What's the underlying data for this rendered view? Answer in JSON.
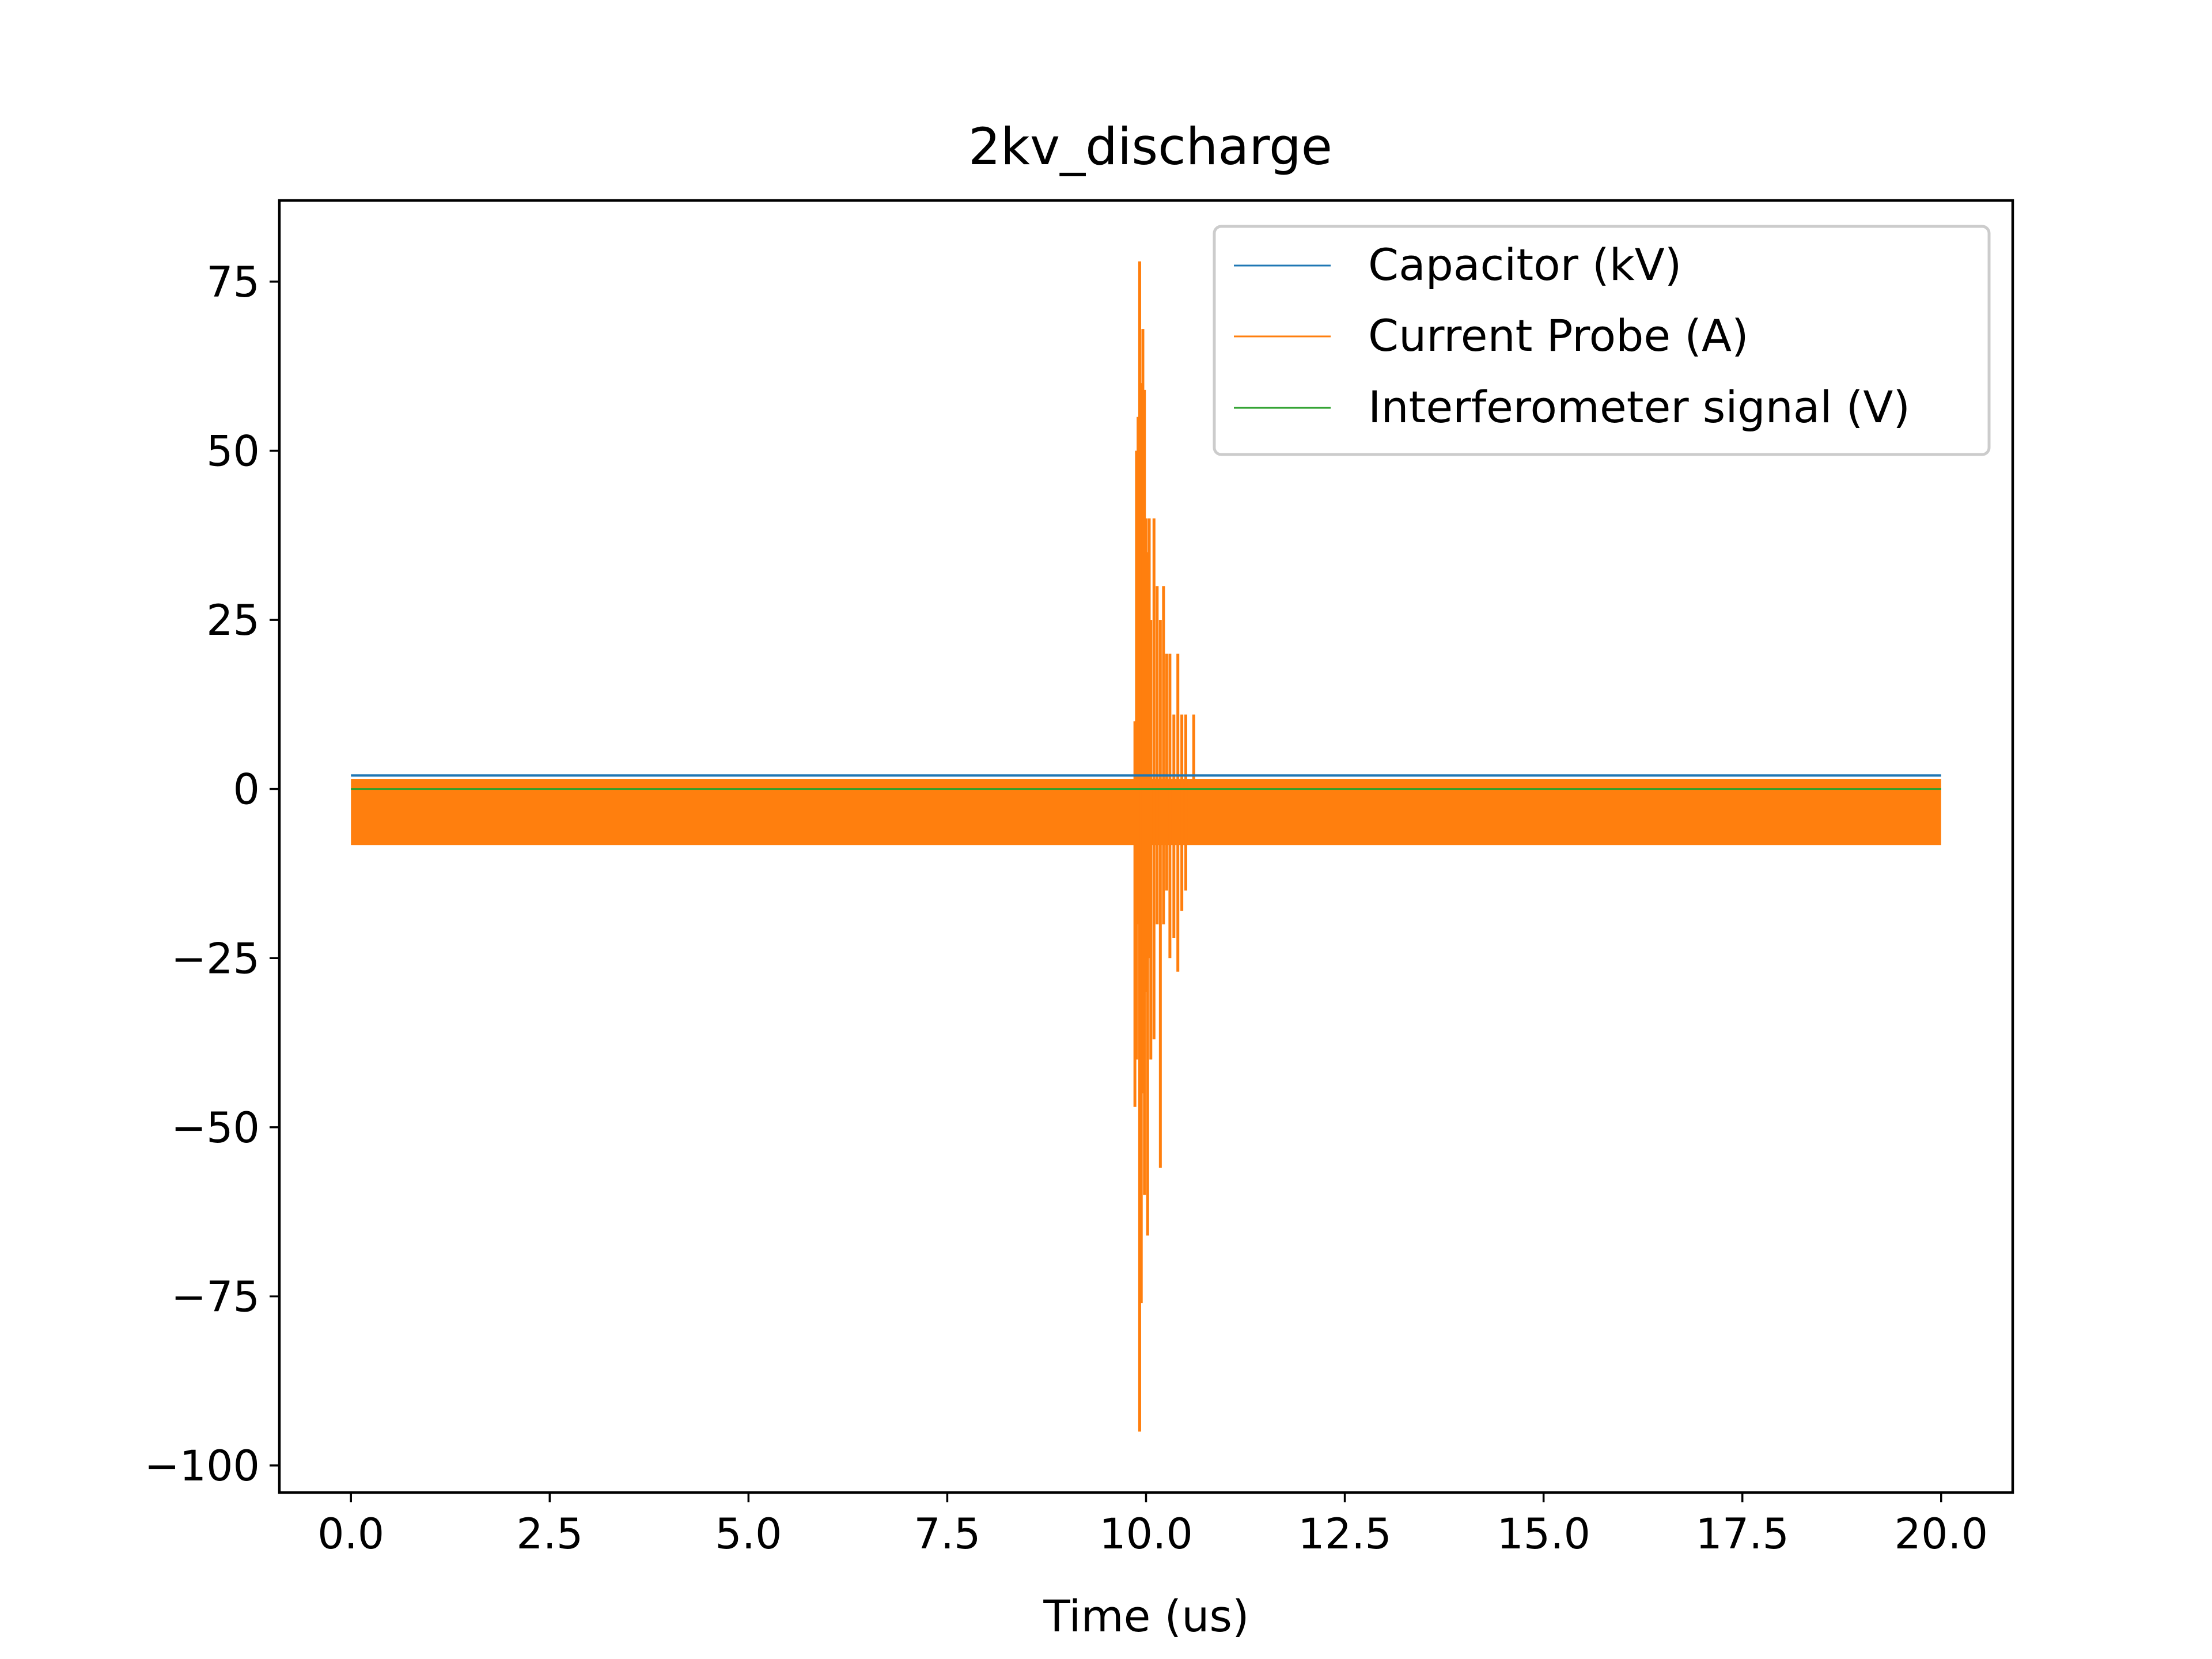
{
  "chart_data": {
    "type": "line",
    "title": "2kv_discharge",
    "xlabel": "Time (us)",
    "ylabel": "",
    "xlim": [
      -0.9,
      20.9
    ],
    "ylim": [
      -104,
      87
    ],
    "x_ticks": [
      0.0,
      2.5,
      5.0,
      7.5,
      10.0,
      12.5,
      15.0,
      17.5,
      20.0
    ],
    "x_tick_labels": [
      "0.0",
      "2.5",
      "5.0",
      "7.5",
      "10.0",
      "12.5",
      "15.0",
      "17.5",
      "20.0"
    ],
    "y_ticks": [
      75,
      50,
      25,
      0,
      -25,
      -50,
      -75,
      -100
    ],
    "y_tick_labels": [
      "75",
      "50",
      "25",
      "0",
      "−25",
      "−50",
      "−75",
      "−100"
    ],
    "grid": false,
    "legend_position": "top-right",
    "colors": {
      "capacitor": "#1f77b4",
      "current": "#ff7f0e",
      "interferometer": "#2ca02c"
    },
    "series": [
      {
        "name": "Capacitor (kV)",
        "x": [
          0.0,
          20.0
        ],
        "values": [
          2.0,
          2.0
        ]
      },
      {
        "name": "Current Probe (A)",
        "noise_band": {
          "x": [
            0.0,
            20.0
          ],
          "y_low": -8.3,
          "y_high": 1.5
        },
        "spikes": [
          {
            "x": 9.86,
            "low": -47,
            "high": 10
          },
          {
            "x": 9.88,
            "low": -40,
            "high": 50
          },
          {
            "x": 9.9,
            "low": -20,
            "high": 55
          },
          {
            "x": 9.92,
            "low": -95,
            "high": 78
          },
          {
            "x": 9.94,
            "low": -76,
            "high": 60
          },
          {
            "x": 9.96,
            "low": -45,
            "high": 68
          },
          {
            "x": 9.98,
            "low": -60,
            "high": 59
          },
          {
            "x": 10.0,
            "low": -30,
            "high": 40
          },
          {
            "x": 10.02,
            "low": -66,
            "high": 35
          },
          {
            "x": 10.04,
            "low": -25,
            "high": 40
          },
          {
            "x": 10.06,
            "low": -40,
            "high": 25
          },
          {
            "x": 10.1,
            "low": -37,
            "high": 40
          },
          {
            "x": 10.14,
            "low": -20,
            "high": 30
          },
          {
            "x": 10.18,
            "low": -56,
            "high": 25
          },
          {
            "x": 10.22,
            "low": -20,
            "high": 30
          },
          {
            "x": 10.26,
            "low": -15,
            "high": 20
          },
          {
            "x": 10.3,
            "low": -25,
            "high": 20
          },
          {
            "x": 10.35,
            "low": -22,
            "high": 11
          },
          {
            "x": 10.4,
            "low": -27,
            "high": 20
          },
          {
            "x": 10.45,
            "low": -18,
            "high": 11
          },
          {
            "x": 10.5,
            "low": -15,
            "high": 11
          },
          {
            "x": 10.6,
            "low": -8,
            "high": 11
          }
        ]
      },
      {
        "name": "Interferometer signal (V)",
        "x": [
          0.0,
          20.0
        ],
        "values": [
          0.0,
          0.0
        ]
      }
    ]
  }
}
